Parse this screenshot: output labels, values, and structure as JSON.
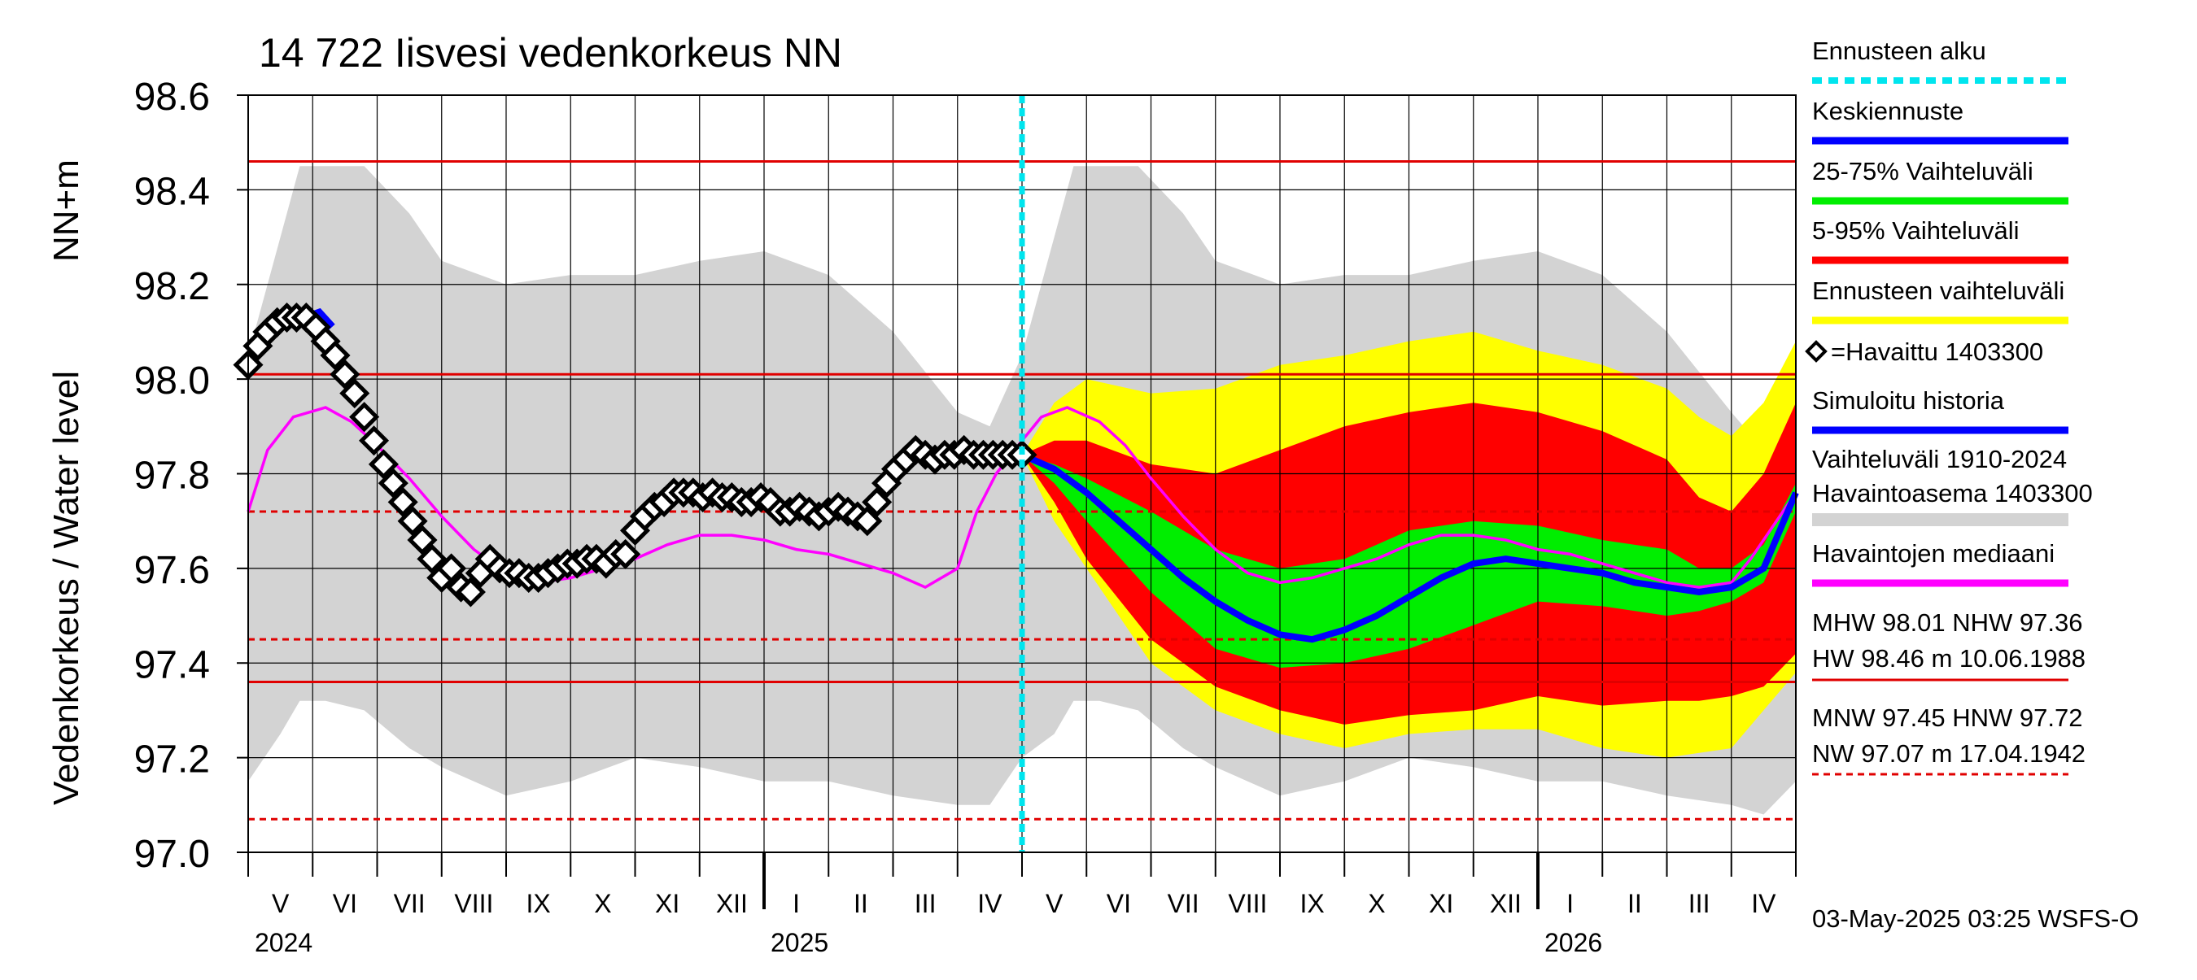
{
  "chart_data": {
    "type": "area",
    "title": "14 722 Iisvesi vedenkorkeus NN",
    "ylabel_left": "Vedenkorkeus / Water level",
    "ylabel_unit": "NN+m",
    "ylim": [
      97.0,
      98.6
    ],
    "yticks": [
      "97.0",
      "97.2",
      "97.4",
      "97.6",
      "97.8",
      "98.0",
      "98.2",
      "98.4",
      "98.6"
    ],
    "x_range_months": [
      0,
      24
    ],
    "forecast_start_month": 12,
    "months": [
      "V",
      "VI",
      "VII",
      "VIII",
      "IX",
      "X",
      "XI",
      "XII",
      "I",
      "II",
      "III",
      "IV",
      "V",
      "VI",
      "VII",
      "VIII",
      "IX",
      "X",
      "XI",
      "XII",
      "I",
      "II",
      "III",
      "IV"
    ],
    "years": [
      {
        "label": "2024",
        "month_index": 0
      },
      {
        "label": "2025",
        "month_index": 8
      },
      {
        "label": "2026",
        "month_index": 20
      }
    ],
    "reference_lines": [
      {
        "name": "HW",
        "value": 98.46,
        "style": "solid"
      },
      {
        "name": "MHW",
        "value": 98.01,
        "style": "solid"
      },
      {
        "name": "HNW",
        "value": 97.72,
        "style": "dashed"
      },
      {
        "name": "MNW",
        "value": 97.45,
        "style": "dashed"
      },
      {
        "name": "NHW",
        "value": 97.36,
        "style": "solid"
      },
      {
        "name": "NW",
        "value": 97.07,
        "style": "dashed"
      }
    ],
    "historical_range_band": {
      "x": [
        0,
        0.5,
        0.8,
        1.2,
        1.8,
        2.5,
        3.0,
        4.0,
        5.0,
        6.0,
        7.0,
        8.0,
        9.0,
        10.0,
        11.0,
        11.5,
        12.0,
        12.5,
        12.8,
        13.2,
        13.8,
        14.5,
        15.0,
        16.0,
        17.0,
        18.0,
        19.0,
        20.0,
        21.0,
        22.0,
        23.0,
        23.5,
        24.0
      ],
      "upper": [
        98.05,
        98.3,
        98.45,
        98.45,
        98.45,
        98.35,
        98.25,
        98.2,
        98.22,
        98.22,
        98.25,
        98.27,
        98.22,
        98.1,
        97.93,
        97.9,
        98.05,
        98.3,
        98.45,
        98.45,
        98.45,
        98.35,
        98.25,
        98.2,
        98.22,
        98.22,
        98.25,
        98.27,
        98.22,
        98.1,
        97.93,
        97.85,
        97.95
      ],
      "lower": [
        97.15,
        97.25,
        97.32,
        97.32,
        97.3,
        97.22,
        97.18,
        97.12,
        97.15,
        97.2,
        97.18,
        97.15,
        97.15,
        97.12,
        97.1,
        97.1,
        97.2,
        97.25,
        97.32,
        97.32,
        97.3,
        97.22,
        97.18,
        97.12,
        97.15,
        97.2,
        97.18,
        97.15,
        97.15,
        97.12,
        97.1,
        97.08,
        97.15
      ]
    },
    "forecast_range_yellow": {
      "x": [
        12.0,
        12.5,
        13.0,
        14.0,
        15.0,
        16.0,
        17.0,
        18.0,
        19.0,
        20.0,
        21.0,
        22.0,
        22.5,
        23.0,
        23.5,
        24.0
      ],
      "upper": [
        97.84,
        97.95,
        98.0,
        97.97,
        97.98,
        98.03,
        98.05,
        98.08,
        98.1,
        98.06,
        98.03,
        97.98,
        97.92,
        97.88,
        97.95,
        98.08
      ],
      "lower": [
        97.84,
        97.7,
        97.6,
        97.4,
        97.3,
        97.25,
        97.22,
        97.25,
        97.26,
        97.26,
        97.22,
        97.2,
        97.21,
        97.22,
        97.3,
        97.38
      ]
    },
    "forecast_range_red": {
      "x": [
        12.0,
        12.5,
        13.0,
        14.0,
        15.0,
        16.0,
        17.0,
        18.0,
        19.0,
        20.0,
        21.0,
        22.0,
        22.5,
        23.0,
        23.5,
        24.0
      ],
      "upper": [
        97.84,
        97.87,
        97.87,
        97.82,
        97.8,
        97.85,
        97.9,
        97.93,
        97.95,
        97.93,
        97.89,
        97.83,
        97.75,
        97.72,
        97.8,
        97.95
      ],
      "lower": [
        97.84,
        97.74,
        97.62,
        97.45,
        97.35,
        97.3,
        97.27,
        97.29,
        97.3,
        97.33,
        97.31,
        97.32,
        97.32,
        97.33,
        97.35,
        97.42
      ]
    },
    "forecast_range_green": {
      "x": [
        12.0,
        12.5,
        13.0,
        14.0,
        15.0,
        16.0,
        17.0,
        18.0,
        19.0,
        20.0,
        21.0,
        22.0,
        22.5,
        23.0,
        23.5,
        24.0
      ],
      "upper": [
        97.84,
        97.82,
        97.79,
        97.72,
        97.64,
        97.6,
        97.62,
        97.68,
        97.7,
        97.69,
        97.66,
        97.64,
        97.6,
        97.6,
        97.65,
        97.78
      ],
      "lower": [
        97.84,
        97.78,
        97.7,
        97.55,
        97.43,
        97.39,
        97.4,
        97.43,
        97.48,
        97.53,
        97.52,
        97.5,
        97.51,
        97.53,
        97.57,
        97.72
      ]
    },
    "median_forecast": {
      "x": [
        12.0,
        12.5,
        13.0,
        13.5,
        14.0,
        14.5,
        15.0,
        15.5,
        16.0,
        16.5,
        17.0,
        17.5,
        18.0,
        18.5,
        19.0,
        19.5,
        20.0,
        20.5,
        21.0,
        21.5,
        22.0,
        22.5,
        23.0,
        23.5,
        24.0
      ],
      "y": [
        97.84,
        97.81,
        97.76,
        97.7,
        97.64,
        97.58,
        97.53,
        97.49,
        97.46,
        97.45,
        97.47,
        97.5,
        97.54,
        97.58,
        97.61,
        97.62,
        97.61,
        97.6,
        97.59,
        97.57,
        97.56,
        97.55,
        97.56,
        97.6,
        97.76
      ]
    },
    "observation_median": {
      "x": [
        0,
        0.3,
        0.7,
        1.2,
        1.6,
        2.0,
        2.5,
        3.0,
        3.5,
        4.0,
        4.5,
        5.0,
        5.5,
        6.0,
        6.5,
        7.0,
        7.5,
        8.0,
        8.5,
        9.0,
        9.5,
        10.0,
        10.5,
        11.0,
        11.3,
        11.6,
        12.0,
        12.3,
        12.7,
        13.2,
        13.6,
        14.0,
        14.5,
        15.0,
        15.5,
        16.0,
        16.5,
        17.0,
        17.5,
        18.0,
        18.5,
        19.0,
        19.5,
        20.0,
        20.5,
        21.0,
        21.5,
        22.0,
        22.5,
        23.0,
        23.3,
        23.6,
        24.0
      ],
      "y": [
        97.72,
        97.85,
        97.92,
        97.94,
        97.91,
        97.86,
        97.79,
        97.71,
        97.64,
        97.59,
        97.57,
        97.58,
        97.6,
        97.62,
        97.65,
        97.67,
        97.67,
        97.66,
        97.64,
        97.63,
        97.61,
        97.59,
        97.56,
        97.6,
        97.72,
        97.8,
        97.87,
        97.92,
        97.94,
        97.91,
        97.86,
        97.79,
        97.71,
        97.64,
        97.59,
        97.57,
        97.58,
        97.6,
        97.62,
        97.65,
        97.67,
        97.67,
        97.66,
        97.64,
        97.63,
        97.61,
        97.59,
        97.57,
        97.56,
        97.57,
        97.62,
        97.68,
        97.76
      ]
    },
    "simulated_history": {
      "x": [
        0.9,
        1.1,
        1.3
      ],
      "y": [
        98.13,
        98.14,
        98.11
      ]
    },
    "observed": {
      "station": "1403300",
      "x": [
        0.0,
        0.15,
        0.3,
        0.45,
        0.6,
        0.75,
        0.9,
        1.05,
        1.2,
        1.35,
        1.5,
        1.65,
        1.8,
        1.95,
        2.1,
        2.25,
        2.4,
        2.55,
        2.7,
        2.85,
        3.0,
        3.15,
        3.3,
        3.45,
        3.6,
        3.75,
        3.9,
        4.05,
        4.2,
        4.35,
        4.5,
        4.65,
        4.8,
        4.95,
        5.1,
        5.25,
        5.4,
        5.55,
        5.7,
        5.85,
        6.0,
        6.15,
        6.3,
        6.45,
        6.6,
        6.75,
        6.9,
        7.05,
        7.2,
        7.35,
        7.5,
        7.65,
        7.8,
        7.95,
        8.1,
        8.25,
        8.4,
        8.55,
        8.7,
        8.85,
        9.0,
        9.15,
        9.3,
        9.45,
        9.6,
        9.75,
        9.9,
        10.05,
        10.2,
        10.35,
        10.5,
        10.65,
        10.8,
        10.95,
        11.1,
        11.25,
        11.4,
        11.55,
        11.7,
        11.85,
        12.0
      ],
      "y": [
        98.03,
        98.07,
        98.1,
        98.12,
        98.13,
        98.13,
        98.13,
        98.11,
        98.08,
        98.05,
        98.01,
        97.97,
        97.92,
        97.87,
        97.82,
        97.78,
        97.74,
        97.7,
        97.66,
        97.62,
        97.58,
        97.6,
        97.56,
        97.55,
        97.59,
        97.62,
        97.6,
        97.59,
        97.59,
        97.58,
        97.58,
        97.59,
        97.6,
        97.61,
        97.61,
        97.62,
        97.62,
        97.61,
        97.63,
        97.63,
        97.68,
        97.71,
        97.73,
        97.74,
        97.76,
        97.76,
        97.76,
        97.75,
        97.76,
        97.75,
        97.75,
        97.74,
        97.74,
        97.75,
        97.74,
        97.72,
        97.72,
        97.73,
        97.72,
        97.71,
        97.72,
        97.73,
        97.72,
        97.71,
        97.7,
        97.74,
        97.78,
        97.81,
        97.83,
        97.85,
        97.84,
        97.83,
        97.84,
        97.84,
        97.85,
        97.84,
        97.84,
        97.84,
        97.84,
        97.84,
        97.84
      ]
    },
    "legend": [
      {
        "label": "Ennusteen alku",
        "color": "#00e5ee",
        "kind": "dashed"
      },
      {
        "label": "Keskiennuste",
        "color": "#0000ff",
        "kind": "line"
      },
      {
        "label": "25-75% Vaihteluväli",
        "color": "#00ee00",
        "kind": "line"
      },
      {
        "label": "5-95% Vaihteluväli",
        "color": "#ff0000",
        "kind": "line"
      },
      {
        "label": "Ennusteen vaihteluväli",
        "color": "#ffff00",
        "kind": "line"
      },
      {
        "label": "=Havaittu 1403300",
        "color": "#000000",
        "kind": "diamond"
      },
      {
        "label": "Simuloitu historia",
        "color": "#0000ff",
        "kind": "line"
      },
      {
        "label": "Vaihteluväli 1910-2024",
        "color": "#d3d3d3",
        "kind": "none"
      },
      {
        "label": " Havaintoasema 1403300",
        "color": "#d3d3d3",
        "kind": "band"
      },
      {
        "label": "Havaintojen mediaani",
        "color": "#ff00ff",
        "kind": "line"
      }
    ],
    "stats_high": {
      "line1": "MHW  98.01 NHW  97.36",
      "line2": "HW  98.46 m 10.06.1988"
    },
    "stats_low": {
      "line1": "MNW  97.45 HNW  97.72",
      "line2": "NW  97.07 m 17.04.1942"
    },
    "footer": "03-May-2025 03:25 WSFS-O"
  },
  "colors": {
    "band_grey": "#d3d3d3",
    "yellow": "#ffff00",
    "red": "#ff0000",
    "green": "#00ee00",
    "blue": "#0000ff",
    "magenta": "#ff00ff",
    "cyan": "#00e5ee",
    "ref_red": "#e00000"
  }
}
